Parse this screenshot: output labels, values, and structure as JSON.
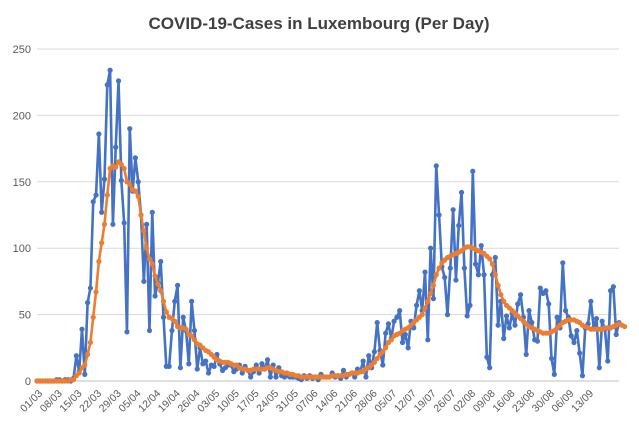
{
  "chart_data": {
    "type": "line",
    "title": "COVID-19-Cases in Luxembourg (Per Day)",
    "xlabel": "",
    "ylabel": "",
    "ylim": [
      0,
      250
    ],
    "yticks": [
      0,
      50,
      100,
      150,
      200,
      250
    ],
    "grid": "horizontal",
    "legend": "none",
    "x_start": "01/03",
    "x_end": "15/09",
    "xtick_labels": [
      "01/03",
      "08/03",
      "15/03",
      "22/03",
      "29/03",
      "05/04",
      "12/04",
      "19/04",
      "26/04",
      "03/05",
      "10/05",
      "17/05",
      "24/05",
      "31/05",
      "07/06",
      "14/06",
      "21/06",
      "28/06",
      "05/07",
      "12/07",
      "19/07",
      "26/07",
      "02/08",
      "09/08",
      "16/08",
      "23/08",
      "30/08",
      "06/09",
      "13/09"
    ],
    "series": [
      {
        "color": "#4472C4",
        "values": [
          0,
          0,
          0,
          0,
          0,
          0,
          0,
          1,
          1,
          0,
          1,
          1,
          0,
          2,
          19,
          7,
          39,
          5,
          59,
          70,
          135,
          140,
          186,
          127,
          152,
          223,
          234,
          118,
          176,
          226,
          151,
          119,
          37,
          190,
          143,
          168,
          150,
          125,
          75,
          118,
          38,
          127,
          64,
          74,
          90,
          48,
          11,
          11,
          38,
          60,
          72,
          10,
          48,
          38,
          13,
          60,
          38,
          9,
          25,
          13,
          15,
          6,
          12,
          11,
          20,
          13,
          8,
          10,
          12,
          12,
          7,
          9,
          12,
          6,
          11,
          8,
          3,
          7,
          12,
          6,
          13,
          9,
          16,
          3,
          12,
          3,
          10,
          4,
          3,
          4,
          3,
          3,
          3,
          2,
          1,
          4,
          2,
          4,
          2,
          3,
          1,
          5,
          3,
          3,
          3,
          6,
          3,
          4,
          2,
          8,
          3,
          5,
          6,
          3,
          9,
          7,
          15,
          3,
          19,
          10,
          22,
          44,
          23,
          12,
          36,
          43,
          32,
          45,
          48,
          53,
          29,
          35,
          25,
          45,
          40,
          57,
          68,
          53,
          82,
          31,
          100,
          62,
          162,
          125,
          86,
          78,
          50,
          85,
          129,
          76,
          117,
          142,
          85,
          49,
          57,
          158,
          88,
          80,
          102,
          80,
          18,
          10,
          80,
          93,
          42,
          60,
          32,
          49,
          40,
          51,
          42,
          58,
          65,
          48,
          20,
          53,
          44,
          31,
          30,
          70,
          66,
          68,
          58,
          17,
          5,
          48,
          40,
          89,
          53,
          48,
          34,
          29,
          38,
          21,
          4,
          40,
          43,
          60,
          40,
          47,
          10,
          45,
          39,
          15,
          68,
          71,
          35,
          44
        ]
      },
      {
        "color": "#ED7D31",
        "values": [
          0,
          0,
          0,
          0,
          0,
          0,
          0,
          0,
          0,
          0,
          0,
          0,
          1,
          1,
          4,
          6,
          10,
          12,
          20,
          29,
          48,
          67,
          90,
          104,
          118,
          140,
          160,
          162,
          161,
          165,
          163,
          160,
          150,
          148,
          144,
          143,
          139,
          125,
          113,
          100,
          92,
          88,
          79,
          73,
          68,
          60,
          52,
          48,
          47,
          45,
          41,
          40,
          40,
          39,
          35,
          34,
          31,
          28,
          27,
          25,
          23,
          22,
          20,
          18,
          16,
          15,
          14,
          14,
          14,
          13,
          12,
          12,
          10,
          9,
          9,
          8,
          8,
          9,
          9,
          9,
          9,
          9,
          10,
          10,
          9,
          8,
          7,
          7,
          6,
          6,
          5,
          5,
          4,
          4,
          3,
          3,
          3,
          3,
          3,
          3,
          3,
          3,
          3,
          3,
          3,
          4,
          4,
          4,
          4,
          4,
          5,
          5,
          6,
          6,
          6,
          7,
          7,
          9,
          10,
          12,
          14,
          17,
          20,
          22,
          25,
          29,
          31,
          34,
          35,
          36,
          38,
          39,
          40,
          42,
          44,
          46,
          48,
          50,
          55,
          60,
          66,
          72,
          80,
          85,
          89,
          91,
          93,
          94,
          95,
          96,
          97,
          98,
          100,
          101,
          101,
          100,
          99,
          98,
          97,
          96,
          94,
          92,
          88,
          80,
          72,
          65,
          60,
          57,
          55,
          53,
          51,
          49,
          47,
          45,
          43,
          41,
          40,
          39,
          38,
          37,
          36,
          36,
          36,
          37,
          38,
          40,
          42,
          44,
          45,
          46,
          46,
          46,
          45,
          44,
          42,
          41,
          40,
          39,
          39,
          39,
          39,
          39,
          40,
          40,
          40,
          41,
          42,
          43,
          42,
          41
        ]
      }
    ]
  }
}
